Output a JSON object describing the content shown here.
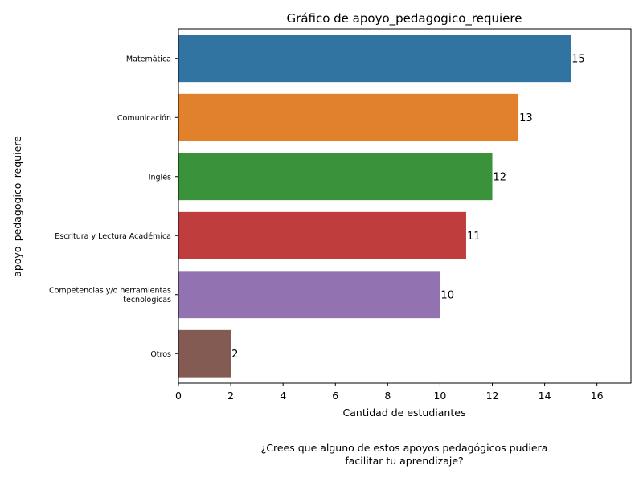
{
  "chart_data": {
    "type": "bar",
    "orientation": "horizontal",
    "title": "Gráfico de apoyo_pedagogico_requiere",
    "xlabel": "Cantidad de estudiantes",
    "ylabel": "apoyo_pedagogico_requiere",
    "caption": [
      "¿Crees que alguno de estos apoyos pedagógicos pudiera",
      "facilitar tu aprendizaje?"
    ],
    "categories": [
      [
        "Matemática"
      ],
      [
        "Comunicación"
      ],
      [
        "Inglés"
      ],
      [
        "Escritura y Lectura Académica"
      ],
      [
        "Competencias y/o herramientas",
        "tecnológicas"
      ],
      [
        "Otros"
      ]
    ],
    "values": [
      15,
      13,
      12,
      11,
      10,
      2
    ],
    "data_labels": [
      "15",
      "13",
      "12",
      "11",
      "10",
      "2"
    ],
    "colors": [
      "#3274a1",
      "#e1812c",
      "#3a923a",
      "#c03d3e",
      "#9372b2",
      "#845b53"
    ],
    "xlim": [
      0,
      17.3
    ],
    "xticks": [
      0,
      2,
      4,
      6,
      8,
      10,
      12,
      14,
      16
    ],
    "grid": false,
    "legend": "none"
  }
}
